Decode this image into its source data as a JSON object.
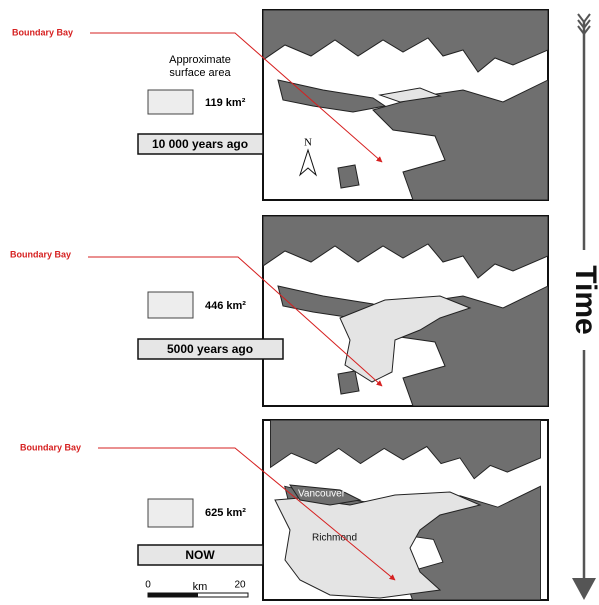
{
  "panels": [
    {
      "label": "Boundary Bay",
      "area": "119 km²",
      "period": "10 000 years ago"
    },
    {
      "label": "Boundary Bay",
      "area": "446 km²",
      "period": "5000 years ago"
    },
    {
      "label": "Boundary Bay",
      "area": "625 km²",
      "period": "NOW"
    }
  ],
  "legend_title": [
    "Approximate",
    "surface area"
  ],
  "north": "N",
  "places": [
    "Vancouver",
    "Richmond"
  ],
  "scale": {
    "start": "0",
    "unit": "km",
    "end": "20"
  },
  "axis_label": "Time"
}
